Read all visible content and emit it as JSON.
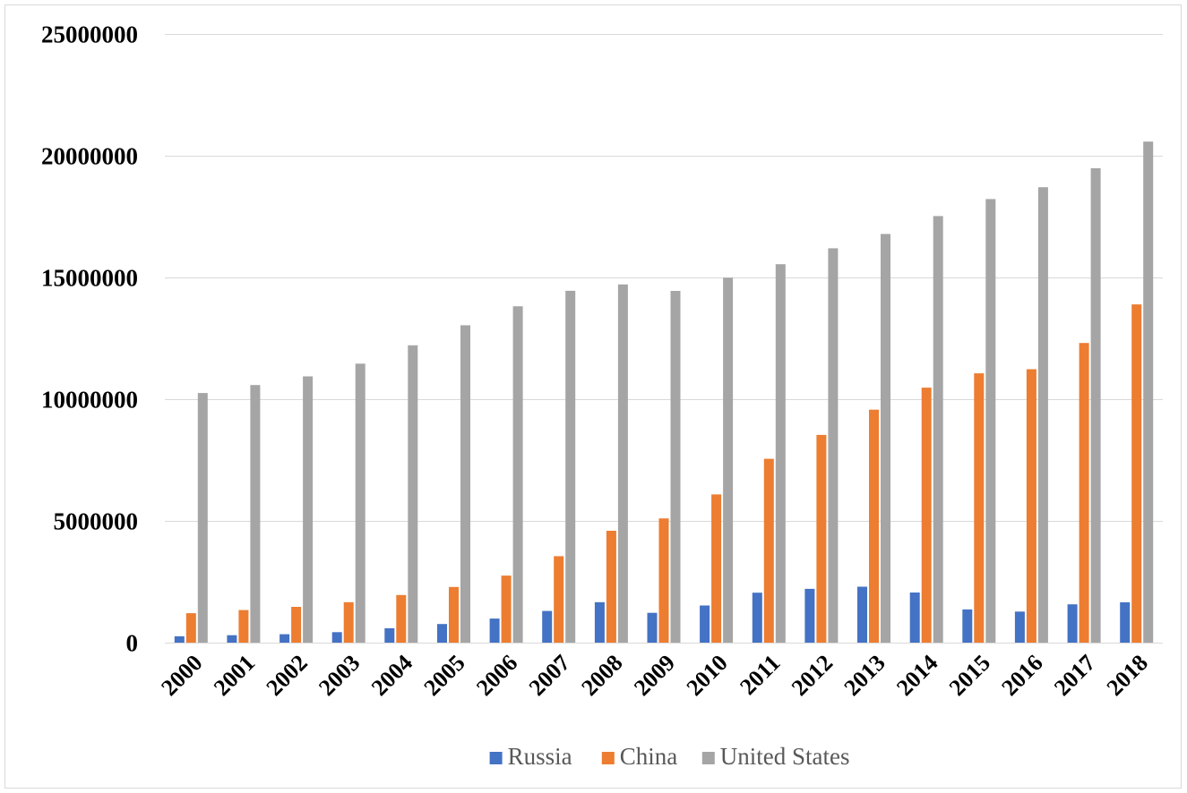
{
  "chart_data": {
    "type": "bar",
    "title": "",
    "xlabel": "",
    "ylabel": "",
    "ylim": [
      0,
      25000000
    ],
    "yticks": [
      0,
      5000000,
      10000000,
      15000000,
      20000000,
      25000000
    ],
    "ytick_labels": [
      "0",
      "5000000",
      "10000000",
      "15000000",
      "20000000",
      "25000000"
    ],
    "grid": true,
    "legend_position": "bottom",
    "categories": [
      "2000",
      "2001",
      "2002",
      "2003",
      "2004",
      "2005",
      "2006",
      "2007",
      "2008",
      "2009",
      "2010",
      "2011",
      "2012",
      "2013",
      "2014",
      "2015",
      "2016",
      "2017",
      "2018"
    ],
    "series": [
      {
        "name": "Russia",
        "color": "#4472c4",
        "values": [
          260000,
          306000,
          345000,
          430000,
          591000,
          764000,
          990000,
          1300000,
          1660000,
          1223000,
          1525000,
          2052000,
          2210000,
          2297000,
          2060000,
          1363000,
          1277000,
          1574000,
          1658000
        ]
      },
      {
        "name": "China",
        "color": "#ed7d31",
        "values": [
          1211000,
          1339000,
          1471000,
          1660000,
          1955000,
          2286000,
          2752000,
          3550000,
          4594000,
          5102000,
          6087000,
          7552000,
          8532000,
          9570000,
          10476000,
          11062000,
          11233000,
          12310000,
          13895000
        ]
      },
      {
        "name": "United States",
        "color": "#a5a5a5",
        "values": [
          10252000,
          10582000,
          10936000,
          11458000,
          12214000,
          13037000,
          13815000,
          14452000,
          14713000,
          14449000,
          14992000,
          15543000,
          16197000,
          16785000,
          17522000,
          18219000,
          18707000,
          19485000,
          20580000
        ]
      }
    ]
  }
}
